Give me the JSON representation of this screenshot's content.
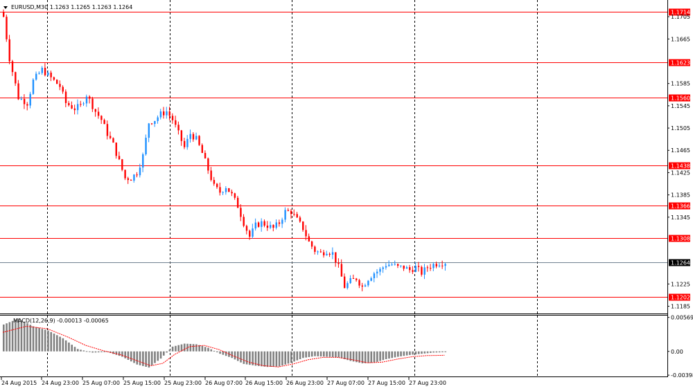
{
  "window": {
    "symbol_info": "EURUSD,M30  1.1263 1.1265 1.1263 1.1264",
    "macd_label": "MACD(12,26,9) -0.00013 -0.00065"
  },
  "colors": {
    "background": "#ffffff",
    "bull": "#1e90ff",
    "bear": "#ff0000",
    "level_line": "#ff0000",
    "level_tag_bg": "#ff0000",
    "current_line": "#708090",
    "current_tag_bg": "#000000",
    "macd_hist": "#808080",
    "macd_signal": "#ff0000",
    "separator": "#000000"
  },
  "chart_data": {
    "type": "candlestick",
    "symbol": "EURUSD",
    "timeframe": "M30",
    "price_axis": {
      "range": [
        1.1172,
        1.1735
      ],
      "ticks": [
        "1.1705",
        "1.1665",
        "1.1585",
        "1.1545",
        "1.1505",
        "1.1465",
        "1.1425",
        "1.1385",
        "1.1345",
        "1.1225",
        "1.1185"
      ]
    },
    "horizontal_levels": [
      "1.1714",
      "1.1623",
      "1.1560",
      "1.1438",
      "1.1366",
      "1.1308",
      "1.1202"
    ],
    "current_price": "1.1264",
    "time_labels": [
      "24 Aug 2015",
      "24 Aug 23:00",
      "25 Aug 07:00",
      "25 Aug 15:00",
      "25 Aug 23:00",
      "26 Aug 07:00",
      "26 Aug 15:00",
      "26 Aug 23:00",
      "27 Aug 07:00",
      "27 Aug 15:00",
      "27 Aug 23:00"
    ],
    "period_separators": [
      "25 Aug",
      "26 Aug",
      "27 Aug",
      "28 Aug"
    ],
    "price_path": [
      [
        0,
        1.1705
      ],
      [
        2,
        1.163
      ],
      [
        5,
        1.156
      ],
      [
        8,
        1.155
      ],
      [
        10,
        1.159
      ],
      [
        13,
        1.161
      ],
      [
        16,
        1.1595
      ],
      [
        19,
        1.158
      ],
      [
        21,
        1.155
      ],
      [
        24,
        1.154
      ],
      [
        26,
        1.1545
      ],
      [
        28,
        1.1565
      ],
      [
        29,
        1.1555
      ],
      [
        31,
        1.1535
      ],
      [
        33,
        1.152
      ],
      [
        35,
        1.1495
      ],
      [
        37,
        1.1475
      ],
      [
        39,
        1.1445
      ],
      [
        41,
        1.1415
      ],
      [
        43,
        1.1415
      ],
      [
        45,
        1.1425
      ],
      [
        47,
        1.1455
      ],
      [
        49,
        1.1515
      ],
      [
        51,
        1.152
      ],
      [
        53,
        1.153
      ],
      [
        55,
        1.1535
      ],
      [
        57,
        1.152
      ],
      [
        59,
        1.1495
      ],
      [
        61,
        1.147
      ],
      [
        63,
        1.1495
      ],
      [
        65,
        1.1485
      ],
      [
        67,
        1.146
      ],
      [
        69,
        1.143
      ],
      [
        71,
        1.14
      ],
      [
        73,
        1.139
      ],
      [
        75,
        1.14
      ],
      [
        77,
        1.1385
      ],
      [
        79,
        1.1365
      ],
      [
        81,
        1.1335
      ],
      [
        83,
        1.131
      ],
      [
        85,
        1.133
      ],
      [
        87,
        1.1335
      ],
      [
        89,
        1.133
      ],
      [
        91,
        1.1325
      ],
      [
        93,
        1.1335
      ],
      [
        95,
        1.1355
      ],
      [
        97,
        1.1355
      ],
      [
        99,
        1.134
      ],
      [
        101,
        1.1325
      ],
      [
        103,
        1.13
      ],
      [
        105,
        1.1285
      ],
      [
        107,
        1.128
      ],
      [
        109,
        1.1285
      ],
      [
        111,
        1.128
      ],
      [
        113,
        1.1255
      ],
      [
        115,
        1.122
      ],
      [
        117,
        1.123
      ],
      [
        119,
        1.1235
      ],
      [
        121,
        1.122
      ],
      [
        123,
        1.1235
      ],
      [
        125,
        1.1245
      ],
      [
        127,
        1.125
      ],
      [
        129,
        1.126
      ],
      [
        131,
        1.126
      ],
      [
        133,
        1.1255
      ],
      [
        135,
        1.1255
      ],
      [
        137,
        1.125
      ],
      [
        139,
        1.1255
      ],
      [
        141,
        1.1245
      ],
      [
        143,
        1.1255
      ],
      [
        145,
        1.126
      ],
      [
        147,
        1.1263
      ],
      [
        149,
        1.1264
      ]
    ],
    "macd_axis": {
      "ticks": [
        "0.00569",
        "0.00",
        "-0.00398"
      ],
      "tick_values": [
        0.00569,
        0.0,
        -0.00398
      ],
      "range": [
        -0.0042,
        0.006
      ]
    },
    "macd_main_path": [
      [
        0,
        0.0045
      ],
      [
        5,
        0.0055
      ],
      [
        10,
        0.0042
      ],
      [
        15,
        0.0035
      ],
      [
        20,
        0.0022
      ],
      [
        25,
        0.0004
      ],
      [
        30,
        -0.0002
      ],
      [
        35,
        -0.0001
      ],
      [
        40,
        -0.0009
      ],
      [
        45,
        -0.0022
      ],
      [
        49,
        -0.0027
      ],
      [
        53,
        -0.0012
      ],
      [
        57,
        0.0008
      ],
      [
        61,
        0.0013
      ],
      [
        65,
        0.0012
      ],
      [
        69,
        0.0006
      ],
      [
        73,
        -0.0004
      ],
      [
        77,
        -0.0011
      ],
      [
        81,
        -0.0021
      ],
      [
        85,
        -0.0024
      ],
      [
        89,
        -0.0026
      ],
      [
        93,
        -0.0025
      ],
      [
        97,
        -0.0019
      ],
      [
        101,
        -0.0011
      ],
      [
        105,
        -0.0008
      ],
      [
        109,
        -0.0009
      ],
      [
        113,
        -0.001
      ],
      [
        117,
        -0.0016
      ],
      [
        121,
        -0.002
      ],
      [
        125,
        -0.0019
      ],
      [
        129,
        -0.0013
      ],
      [
        133,
        -0.0009
      ],
      [
        137,
        -0.0006
      ],
      [
        141,
        -0.0004
      ],
      [
        145,
        -0.0002
      ],
      [
        149,
        -0.00013
      ]
    ],
    "macd_signal_path": [
      [
        0,
        0.0032
      ],
      [
        8,
        0.0042
      ],
      [
        15,
        0.0038
      ],
      [
        22,
        0.0024
      ],
      [
        28,
        0.001
      ],
      [
        34,
        0.0001
      ],
      [
        40,
        -0.0006
      ],
      [
        46,
        -0.0017
      ],
      [
        50,
        -0.0024
      ],
      [
        54,
        -0.002
      ],
      [
        58,
        -0.0005
      ],
      [
        63,
        0.0008
      ],
      [
        68,
        0.001
      ],
      [
        73,
        0.0003
      ],
      [
        78,
        -0.0008
      ],
      [
        83,
        -0.0018
      ],
      [
        88,
        -0.0024
      ],
      [
        93,
        -0.0026
      ],
      [
        98,
        -0.0021
      ],
      [
        103,
        -0.0014
      ],
      [
        108,
        -0.001
      ],
      [
        113,
        -0.001
      ],
      [
        118,
        -0.0014
      ],
      [
        123,
        -0.0019
      ],
      [
        128,
        -0.0018
      ],
      [
        133,
        -0.0013
      ],
      [
        138,
        -0.0009
      ],
      [
        143,
        -0.0007
      ],
      [
        149,
        -0.00065
      ]
    ]
  }
}
